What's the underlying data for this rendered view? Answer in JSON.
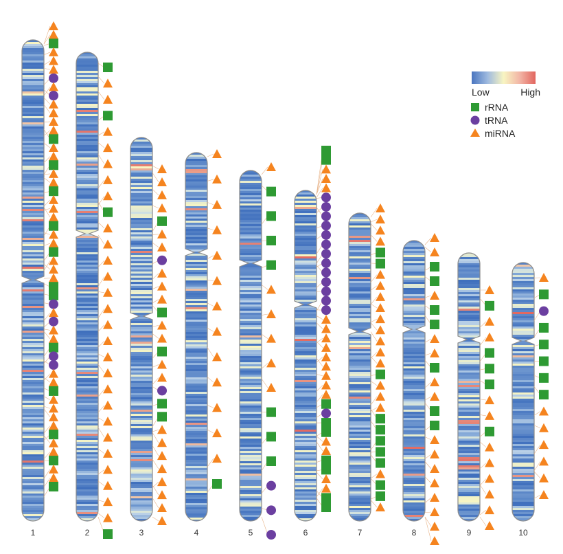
{
  "colors": {
    "rRNA": "#2e9a33",
    "tRNA": "#6b3fa0",
    "miRNA": "#f5841f",
    "heat_low": "#4a76c0",
    "heat_mid": "#f8f5c2",
    "heat_high": "#e2665f",
    "outline": "#8a8a8a",
    "leader": "#e8b48a"
  },
  "legend": {
    "low_label": "Low",
    "high_label": "High",
    "items": [
      {
        "type": "rRNA",
        "label": "rRNA",
        "shape": "square"
      },
      {
        "type": "tRNA",
        "label": "tRNA",
        "shape": "circle"
      },
      {
        "type": "miRNA",
        "label": "miRNA",
        "shape": "triangle"
      }
    ]
  },
  "chromosomes": [
    {
      "label": "1",
      "seed": 11,
      "markers": "TTSTTTCTCTTTTSTTSTTSTTTSTTSTTTSSCTCTTSCCTTSTTTTSTTSTTS"
    },
    {
      "label": "2",
      "seed": 23,
      "markers": "STTSTTTTTSTTTTTTTTTTTTTTTTTTTS"
    },
    {
      "label": "3",
      "seed": 37,
      "markers": "TTTTSTTCTTTSTTSTTCSSTTTTTTTT"
    },
    {
      "label": "4",
      "seed": 41,
      "markers": "TTTTTTTTTTTTTS"
    },
    {
      "label": "5",
      "seed": 53,
      "markers": "TSSSSTTTTTSSSCCC"
    },
    {
      "label": "6",
      "seed": 67,
      "markers": "SSTTTCCCCCCCCCCCCCTTTTTTTTTSCSSTTSSTTSS"
    },
    {
      "label": "7",
      "seed": 71,
      "markers": "TTTTSSTTTTTTTTTSTTTSSSSSTSST"
    },
    {
      "label": "8",
      "seed": 83,
      "markers": "TTSSTSSTTSTTSSTTTTTTTT"
    },
    {
      "label": "9",
      "seed": 97,
      "markers": "TSTTSSSTTSTTTTTT"
    },
    {
      "label": "10",
      "seed": 101,
      "markers": "TSCSSSSSTTTTTT"
    }
  ]
}
